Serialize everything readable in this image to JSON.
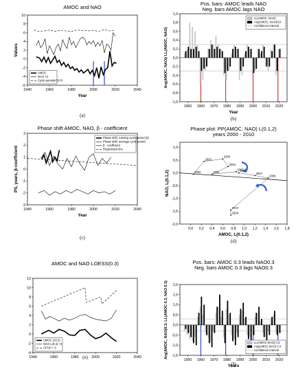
{
  "chart_data": [
    {
      "id": "a",
      "type": "line",
      "title": "AMOC and NAO",
      "xlabel": "Year",
      "ylabel": "Values",
      "xlim": [
        1940,
        2040
      ],
      "ylim": [
        -6,
        10
      ],
      "xticks": [
        "1940",
        "1960",
        "1980",
        "2000",
        "2020",
        "2040"
      ],
      "yticks": [
        "-6",
        "-4",
        "-2",
        "0",
        "2",
        "4",
        "6",
        "8",
        "10"
      ],
      "legend": [
        "AMOC",
        "NAO +3",
        "Cycle periods/10+6"
      ],
      "legend_position": "bottom-left",
      "vlines": [
        2000,
        2010
      ],
      "caption": "(a)",
      "series": [
        {
          "name": "AMOC",
          "style": "thick",
          "x": [
            1948,
            1951,
            1953,
            1955,
            1957,
            1959,
            1961,
            1963,
            1965,
            1967,
            1969,
            1971,
            1973,
            1975,
            1977,
            1979,
            1981,
            1983,
            1985,
            1987,
            1989,
            1991,
            1993,
            1995,
            1997,
            1999,
            2001,
            2003,
            2005,
            2007,
            2009,
            2011,
            2013,
            2015,
            2017,
            2019,
            2021
          ],
          "y": [
            0.5,
            0.2,
            -0.6,
            0.4,
            -0.8,
            0.3,
            -1.0,
            -0.2,
            0.6,
            -0.8,
            -0.3,
            -1.5,
            -0.8,
            -1.8,
            -1.2,
            -2.2,
            -1.8,
            -2.6,
            -2.2,
            -3.0,
            -2.5,
            -3.2,
            -2.8,
            -2.4,
            -3.4,
            -2.6,
            -3.8,
            -2.0,
            -4.4,
            -1.8,
            -3.6,
            -2.4,
            -2.0,
            1.8,
            -1.6,
            -0.8,
            -1.0
          ]
        },
        {
          "name": "NAO +3",
          "style": "thin",
          "x": [
            1948,
            1950,
            1952,
            1954,
            1956,
            1958,
            1960,
            1962,
            1964,
            1966,
            1968,
            1970,
            1972,
            1974,
            1976,
            1978,
            1980,
            1982,
            1984,
            1986,
            1988,
            1990,
            1992,
            1994,
            1996,
            1998,
            2000,
            2002,
            2004,
            2006,
            2008,
            2010,
            2012,
            2014,
            2016,
            2018,
            2020
          ],
          "y": [
            3.0,
            4.2,
            2.6,
            3.2,
            4.6,
            1.2,
            3.0,
            2.0,
            1.0,
            2.6,
            3.4,
            1.8,
            4.4,
            3.2,
            2.4,
            5.0,
            3.2,
            4.0,
            2.6,
            3.6,
            4.6,
            5.0,
            4.6,
            3.2,
            4.0,
            3.4,
            4.2,
            2.8,
            3.8,
            3.0,
            4.2,
            1.4,
            3.4,
            3.0,
            2.0,
            6.0,
            5.2
          ]
        },
        {
          "name": "Cycle periods/10+6",
          "style": "dash",
          "x": [
            1946,
            1950,
            1955,
            1960,
            1965,
            1970,
            1975,
            1980,
            1985,
            1990,
            1995,
            2000,
            2005,
            2010,
            2015,
            2020
          ],
          "y": [
            6.6,
            6.3,
            6.4,
            6.6,
            6.3,
            6.5,
            6.4,
            6.3,
            6.6,
            6.5,
            6.4,
            6.5,
            6.3,
            6.7,
            6.4,
            6.5
          ]
        }
      ]
    },
    {
      "id": "b",
      "type": "bar",
      "title": "Pos. bars: AMOC leads NAO\nNeg. bars AMOC lags NAO",
      "xlabel": "Year",
      "ylabel": "Arg(AMOC, NAO)/ LL(AMOC, NAO)",
      "xlim": [
        1944,
        2026
      ],
      "ylim": [
        -1.0,
        1.0
      ],
      "xticks": [
        "1950",
        "1960",
        "1970",
        "1980",
        "1990",
        "2000",
        "2010",
        "2020"
      ],
      "yticks": [
        "-1,0",
        "-0,8",
        "-0,6",
        "-0,4",
        "-0,2",
        "0,0",
        "0,2",
        "0,4",
        "0,6",
        "0,8",
        "1,0"
      ],
      "legend": [
        "LL(AMOC, NAO)",
        "Arg(AMOC, NAO)/10",
        "Confidence interval"
      ],
      "legend_position": "top-right",
      "confidence": [
        -0.3,
        0.3
      ],
      "vlines": [
        1960,
        1979,
        2000,
        2019
      ],
      "caption": "(b)",
      "x": [
        1948,
        1950,
        1952,
        1954,
        1956,
        1958,
        1960,
        1962,
        1964,
        1966,
        1968,
        1970,
        1972,
        1974,
        1976,
        1978,
        1980,
        1982,
        1984,
        1986,
        1988,
        1990,
        1992,
        1994,
        1996,
        1998,
        2000,
        2002,
        2004,
        2006,
        2008,
        2010,
        2012,
        2014,
        2016,
        2018,
        2020
      ],
      "series": [
        {
          "name": "LL(AMOC, NAO)",
          "values": [
            0.1,
            0.2,
            0.8,
            0.7,
            0.6,
            0.3,
            -0.6,
            -0.5,
            -0.3,
            0.2,
            0.4,
            0.3,
            0.5,
            0.3,
            0.2,
            -0.4,
            -0.5,
            -0.3,
            0.1,
            0.3,
            0.2,
            -0.5,
            -0.4,
            0.1,
            0.3,
            0.2,
            -0.4,
            -0.3,
            0.2,
            0.1,
            0.3,
            -0.2,
            -0.3,
            0.2,
            0.3,
            -0.4,
            0.2
          ]
        },
        {
          "name": "Arg(AMOC, NAO)/10",
          "values": [
            0.15,
            0.25,
            0.2,
            0.2,
            0.25,
            0.15,
            -0.3,
            -0.25,
            -0.2,
            0.2,
            0.3,
            0.2,
            0.25,
            0.2,
            0.15,
            -0.35,
            -0.3,
            -0.2,
            0.2,
            0.25,
            0.2,
            -0.3,
            -0.2,
            0.15,
            0.25,
            0.2,
            -0.35,
            -0.25,
            0.2,
            0.15,
            0.25,
            -0.2,
            -0.2,
            0.15,
            0.3,
            -0.3,
            0.2
          ]
        }
      ]
    },
    {
      "id": "c",
      "type": "line",
      "title": "Phase shift AMOC, NAO, β - coefficient",
      "xlabel": "Year",
      "ylabel": "PS, years, β-coefficient",
      "xlim": [
        1940,
        2040
      ],
      "ylim": [
        -3,
        3
      ],
      "xticks": [
        "1940",
        "1960",
        "1980",
        "2000",
        "2020",
        "2040"
      ],
      "yticks": [
        "-3",
        "-2",
        "-1",
        "0",
        "1",
        "2",
        "3"
      ],
      "legend": [
        "Phase shift, running cycle period (5)",
        "Phase shift, average cycle period",
        "β - coefficient",
        "Regression line"
      ],
      "legend_position": "top-right",
      "caption": "(c)",
      "series": [
        {
          "name": "Phase shift, running cycle period (5)",
          "style": "thick",
          "x": [
            1953,
            1955,
            1957,
            1959,
            1961,
            1963,
            1965,
            1967,
            1969
          ],
          "y": [
            0.8,
            1.2,
            0.5,
            1.0,
            1.5,
            0.6,
            1.0,
            0.7,
            1.6
          ]
        },
        {
          "name": "Phase shift, average cycle period",
          "style": "thin",
          "x": [
            1952,
            1956,
            1960,
            1964,
            1968,
            1972,
            1976,
            1980,
            1984,
            1988,
            1992,
            1996,
            2000,
            2004,
            2008,
            2012,
            2016
          ],
          "y": [
            0.9,
            1.4,
            0.3,
            1.1,
            0.4,
            0.0,
            0.9,
            0.2,
            1.1,
            0.4,
            -0.1,
            1.0,
            1.3,
            0.3,
            0.9,
            0.5,
            1.0
          ]
        },
        {
          "name": "β - coefficient",
          "style": "thin",
          "x": [
            1950,
            1955,
            1960,
            1965,
            1970,
            1975,
            1980,
            1985,
            1990,
            1995,
            2000,
            2005,
            2010,
            2015,
            2020
          ],
          "y": [
            -2.0,
            -1.8,
            -2.2,
            -1.9,
            -2.1,
            -1.8,
            -2.0,
            -1.7,
            -1.9,
            -2.1,
            -1.8,
            -2.0,
            -1.9,
            -2.1,
            -1.8
          ]
        },
        {
          "name": "Regression line",
          "style": "dash",
          "x": [
            1940,
            2040
          ],
          "y": [
            0.9,
            0.3
          ]
        }
      ]
    },
    {
      "id": "d",
      "type": "scatter",
      "title": "Phase plot: PP(AMOC, NAO) L(0.1,2)\nyears 2000 - 2010",
      "xlabel": "AMOC, L(0.1,2)",
      "ylabel": "NAO, L(0.1,2)",
      "xlim": [
        -0.2,
        1.8
      ],
      "ylim": [
        -2.0,
        1.2
      ],
      "xticks": [
        "0,0",
        "0,2",
        "0,4",
        "0,6",
        "0,8",
        "1,0",
        "1,2",
        "1,4",
        "1,6",
        "1,8"
      ],
      "yticks": [
        "-2,0",
        "-1,5",
        "-1,0",
        "-0,5",
        "0,0",
        "0,5",
        "1,0"
      ],
      "caption": "(d)",
      "points": [
        {
          "label": "2000",
          "x": 0.6,
          "y": 0.55
        },
        {
          "label": "2001",
          "x": 0.4,
          "y": -0.05
        },
        {
          "label": "2002",
          "x": 0.05,
          "y": -0.05
        },
        {
          "label": "2003",
          "x": 0.25,
          "y": 0.45
        },
        {
          "label": "2004",
          "x": 0.7,
          "y": 0.25
        },
        {
          "label": "2005",
          "x": 0.85,
          "y": 0.05
        },
        {
          "label": "2006",
          "x": 1.45,
          "y": -0.2
        },
        {
          "label": "2007",
          "x": 1.2,
          "y": -0.1
        },
        {
          "label": "2008",
          "x": 0.9,
          "y": 0.0
        },
        {
          "label": "2009",
          "x": 0.75,
          "y": -1.65
        },
        {
          "label": "2010",
          "x": 0.75,
          "y": -1.45
        }
      ],
      "regression": {
        "x": [
          -0.2,
          1.8
        ],
        "y": [
          0.0,
          -0.3
        ]
      }
    },
    {
      "id": "e",
      "type": "line",
      "title": "AMOC and NAO LOESS(0.3)",
      "xlabel": "",
      "ylabel": "",
      "xlim": [
        1940,
        2040
      ],
      "ylim": [
        -4,
        12
      ],
      "xticks": [
        "1940",
        "1960",
        "1980",
        "2000",
        "2020",
        "2040"
      ],
      "yticks": [
        "-4",
        "-2",
        "0",
        "2",
        "4",
        "6",
        "8",
        "10",
        "12"
      ],
      "legend": [
        "AMOC L(0.3)",
        "NAO L(0.3) +3",
        "CP/10 + 6"
      ],
      "legend_position": "bottom-left",
      "caption": "(e)",
      "series": [
        {
          "name": "AMOC L(0.3)",
          "style": "thick",
          "x": [
            1948,
            1955,
            1960,
            1965,
            1970,
            1975,
            1980,
            1985,
            1990,
            1995,
            2000,
            2005,
            2010,
            2015,
            2020
          ],
          "y": [
            0.0,
            0.8,
            0.2,
            1.0,
            0.6,
            -0.2,
            -0.3,
            0.8,
            1.0,
            -0.2,
            -1.0,
            -0.6,
            0.2,
            -0.8,
            -1.6
          ]
        },
        {
          "name": "NAO L(0.3) +3",
          "style": "thin",
          "x": [
            1948,
            1952,
            1956,
            1960,
            1965,
            1970,
            1975,
            1980,
            1985,
            1990,
            1995,
            2000,
            2005,
            2010,
            2015,
            2020
          ],
          "y": [
            5.0,
            3.2,
            3.8,
            3.4,
            2.8,
            3.4,
            3.0,
            3.4,
            4.0,
            4.2,
            3.6,
            3.2,
            3.0,
            2.8,
            3.4,
            5.2
          ]
        },
        {
          "name": "CP/10 + 6",
          "style": "dash",
          "x": [
            1948,
            1990,
            1991,
            2005,
            2006,
            2020
          ],
          "y": [
            6.0,
            10.0,
            6.8,
            8.0,
            6.5,
            9.4
          ]
        }
      ]
    },
    {
      "id": "f",
      "type": "bar",
      "title": "Pos. bars: AMOC 0.3 leads NAO0.3\nNeg. bars AMOC 0.3 lags NAO0.3",
      "xlabel": "Years",
      "ylabel": "Arg(AMOC, NAO)0.3; LL(AMOC 0.3, NAO 0.3)",
      "xlim": [
        1944,
        2026
      ],
      "ylim": [
        -1.5,
        2.0
      ],
      "xticks": [
        "1950",
        "1960",
        "1970",
        "1980",
        "1990",
        "2000",
        "2010",
        "2020"
      ],
      "yticks": [
        "-1,5",
        "-1,0",
        "-0,5",
        "0,0",
        "0,5",
        "1,0",
        "1,5",
        "2,0"
      ],
      "legend": [
        "LL(AMOC,NAO) 0.3",
        "Arg(AMOC,NAO) 0.3",
        "Confidence interval"
      ],
      "legend_position": "bottom-right",
      "confidence": [
        -0.3,
        0.3
      ],
      "vlines": [
        1960,
        1979,
        2000,
        2019
      ],
      "caption": "(f)",
      "x": [
        1948,
        1950,
        1952,
        1954,
        1956,
        1958,
        1960,
        1962,
        1964,
        1966,
        1968,
        1970,
        1972,
        1974,
        1976,
        1978,
        1980,
        1982,
        1984,
        1986,
        1988,
        1990,
        1992,
        1994,
        1996,
        1998,
        2000,
        2002,
        2004,
        2006,
        2008,
        2010,
        2012,
        2014,
        2016,
        2018,
        2020
      ],
      "series": [
        {
          "name": "LL(AMOC,NAO) 0.3",
          "values": [
            -0.3,
            -0.5,
            -0.7,
            -0.8,
            -0.6,
            0.4,
            0.9,
            0.5,
            -0.4,
            -0.6,
            -0.8,
            -0.3,
            0.6,
            0.9,
            0.4,
            -0.6,
            0.8,
            0.5,
            -0.5,
            -0.7,
            -0.4,
            0.5,
            0.7,
            0.3,
            -0.5,
            -0.6,
            -0.3,
            0.4,
            0.6,
            0.2,
            -0.4,
            -0.6,
            -0.3,
            0.3,
            0.5,
            -0.4,
            -0.3
          ]
        },
        {
          "name": "Arg(AMOC,NAO) 0.3",
          "values": [
            -0.2,
            -0.4,
            -0.6,
            -0.9,
            -1.0,
            0.6,
            1.4,
            1.0,
            -0.5,
            -0.9,
            -1.1,
            -0.4,
            0.9,
            1.5,
            0.7,
            -0.9,
            1.2,
            0.6,
            -0.8,
            -1.0,
            -0.6,
            0.8,
            1.1,
            0.4,
            -0.7,
            -0.9,
            -0.5,
            0.6,
            0.9,
            0.3,
            -0.6,
            -0.8,
            -0.5,
            0.4,
            0.7,
            -0.5,
            -0.4
          ]
        }
      ]
    }
  ]
}
